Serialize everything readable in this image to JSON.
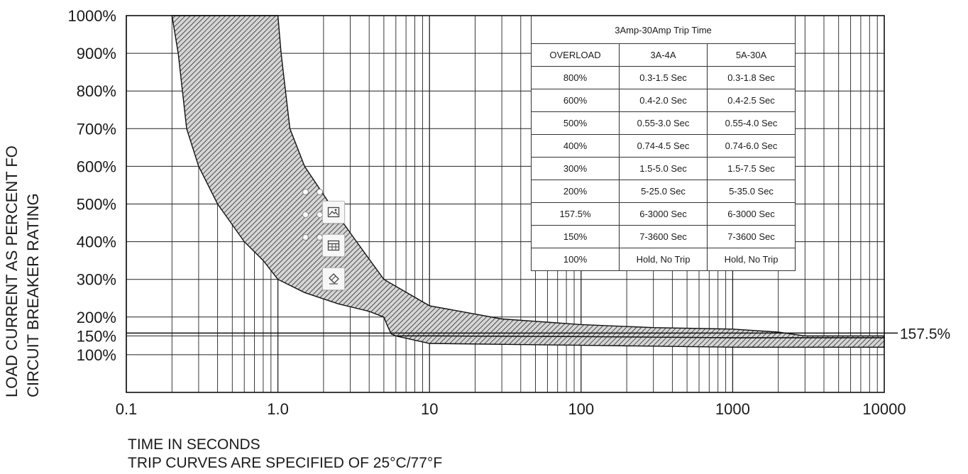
{
  "chart_data": {
    "type": "area",
    "x_scale": "log",
    "xlim": [
      0.1,
      10000
    ],
    "ylim": [
      0,
      1000
    ],
    "x_ticks": [
      "0.1",
      "1.0",
      "10",
      "100",
      "1000",
      "10000"
    ],
    "y_ticks": [
      {
        "value": 1000,
        "label": "1000%"
      },
      {
        "value": 900,
        "label": "900%"
      },
      {
        "value": 800,
        "label": "800%"
      },
      {
        "value": 700,
        "label": "700%"
      },
      {
        "value": 600,
        "label": "600%"
      },
      {
        "value": 500,
        "label": "500%"
      },
      {
        "value": 400,
        "label": "400%"
      },
      {
        "value": 300,
        "label": "300%"
      },
      {
        "value": 200,
        "label": "200%"
      },
      {
        "value": 150,
        "label": "150%"
      },
      {
        "value": 100,
        "label": "100%"
      }
    ],
    "ylabel_lines": [
      "LOAD CURRENT AS PERCENT FO",
      "CIRCUIT BREAKER RATING"
    ],
    "xlabel": "TIME IN SECONDS",
    "note": "TRIP CURVES ARE SPECIFIED OF 25°C/77°F",
    "reference_line": {
      "value": 157.5,
      "label": "157.5%"
    },
    "band": {
      "min_curve": [
        [
          0.2,
          1000
        ],
        [
          0.22,
          900
        ],
        [
          0.25,
          700
        ],
        [
          0.3,
          600
        ],
        [
          0.4,
          500
        ],
        [
          0.6,
          400
        ],
        [
          0.8,
          350
        ],
        [
          1.0,
          300
        ],
        [
          1.5,
          265
        ],
        [
          2.5,
          235
        ],
        [
          4,
          215
        ],
        [
          5,
          200
        ],
        [
          5.3,
          175
        ],
        [
          5.6,
          155
        ],
        [
          6,
          150
        ],
        [
          10,
          150
        ],
        [
          100,
          148
        ],
        [
          1000,
          145
        ],
        [
          10000,
          145
        ]
      ],
      "max_curve": [
        [
          1.0,
          1000
        ],
        [
          1.05,
          900
        ],
        [
          1.2,
          700
        ],
        [
          1.5,
          600
        ],
        [
          2.2,
          500
        ],
        [
          3.3,
          400
        ],
        [
          5,
          300
        ],
        [
          10,
          230
        ],
        [
          30,
          195
        ],
        [
          100,
          180
        ],
        [
          300,
          172
        ],
        [
          1000,
          168
        ],
        [
          2000,
          160
        ],
        [
          3000,
          150
        ],
        [
          10000,
          150
        ]
      ],
      "low_band_top": [
        [
          10,
          150
        ],
        [
          100,
          148
        ],
        [
          1000,
          145
        ],
        [
          10000,
          145
        ]
      ],
      "low_band_bottom": [
        [
          6,
          150
        ],
        [
          10,
          130
        ],
        [
          100,
          125
        ],
        [
          1000,
          120
        ],
        [
          10000,
          120
        ]
      ]
    },
    "table": {
      "title": "3Amp-30Amp Trip Time",
      "headers": [
        "OVERLOAD",
        "3A-4A",
        "5A-30A"
      ],
      "rows": [
        [
          "800%",
          "0.3-1.5 Sec",
          "0.3-1.8 Sec"
        ],
        [
          "600%",
          "0.4-2.0 Sec",
          "0.4-2.5 Sec"
        ],
        [
          "500%",
          "0.55-3.0 Sec",
          "0.55-4.0 Sec"
        ],
        [
          "400%",
          "0.74-4.5 Sec",
          "0.74-6.0 Sec"
        ],
        [
          "300%",
          "1.5-5.0 Sec",
          "1.5-7.5 Sec"
        ],
        [
          "200%",
          "5-25.0 Sec",
          "5-35.0 Sec"
        ],
        [
          "157.5%",
          "6-3000 Sec",
          "6-3000 Sec"
        ],
        [
          "150%",
          "7-3600 Sec",
          "7-3600 Sec"
        ],
        [
          "100%",
          "Hold, No Trip",
          "Hold, No Trip"
        ]
      ]
    },
    "grid": true
  },
  "toolbar": {
    "icons": [
      "image-icon",
      "table-icon",
      "eraser-icon"
    ]
  }
}
